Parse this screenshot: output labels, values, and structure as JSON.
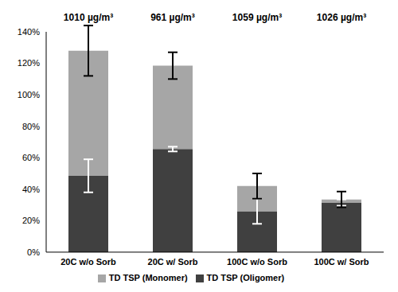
{
  "chart_data": {
    "type": "bar",
    "stacked": true,
    "grid": false,
    "legend": "bottom",
    "categories": [
      "20C w/o Sorb",
      "20C w/ Sorb",
      "100C w/o Sorb",
      "100C w/ Sorb"
    ],
    "annotations": [
      "1010 µg/m³",
      "961 µg/m³",
      "1059 µg/m³",
      "1026 µg/m³"
    ],
    "series": [
      {
        "name": "TD TSP (Oligomer)",
        "color": "#404040",
        "values": [
          48.5,
          65.5,
          26,
          31.5
        ],
        "errors": [
          10.5,
          1.5,
          8,
          2
        ]
      },
      {
        "name": "TD TSP (Monomer)",
        "color": "#a6a6a6",
        "values": [
          79.5,
          53,
          16,
          2
        ],
        "errors": [
          16,
          8.5,
          8,
          5
        ]
      }
    ],
    "ylim": [
      0,
      140
    ],
    "yticks": [
      {
        "value": 0,
        "label": "0%"
      },
      {
        "value": 20,
        "label": "20%"
      },
      {
        "value": 40,
        "label": "40%"
      },
      {
        "value": 60,
        "label": "60%"
      },
      {
        "value": 80,
        "label": "80%"
      },
      {
        "value": 100,
        "label": "100%"
      },
      {
        "value": 120,
        "label": "120%"
      },
      {
        "value": 140,
        "label": "140%"
      }
    ]
  }
}
